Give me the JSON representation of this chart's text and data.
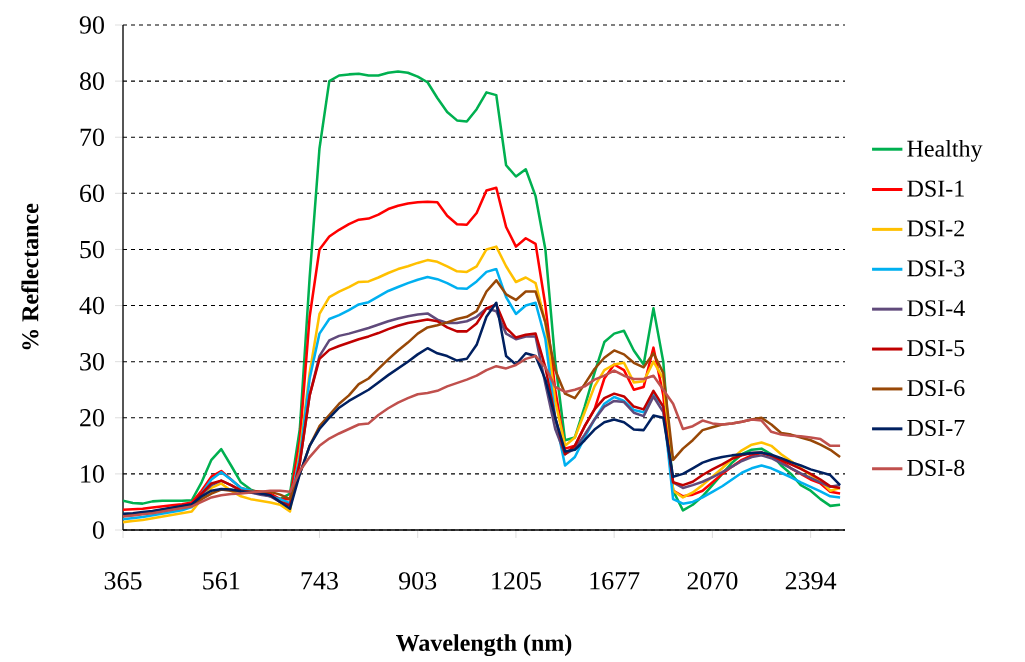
{
  "chart_data": {
    "type": "line",
    "xlabel": "Wavelength (nm)",
    "ylabel": "% Reflectance",
    "categories": [
      "365",
      null,
      null,
      null,
      null,
      null,
      null,
      null,
      null,
      null,
      "561",
      null,
      null,
      null,
      null,
      null,
      null,
      null,
      null,
      null,
      "743",
      null,
      null,
      null,
      null,
      null,
      null,
      null,
      null,
      null,
      "903",
      null,
      null,
      null,
      null,
      null,
      null,
      null,
      null,
      null,
      "1205",
      null,
      null,
      null,
      null,
      null,
      null,
      null,
      null,
      null,
      "1677",
      null,
      null,
      null,
      null,
      null,
      null,
      null,
      null,
      null,
      "2070",
      null,
      null,
      null,
      null,
      null,
      null,
      null,
      null,
      null,
      "2394",
      null,
      null,
      null
    ],
    "ylim": [
      0,
      90
    ],
    "yticks": [
      0,
      10,
      20,
      30,
      40,
      50,
      60,
      70,
      80,
      90
    ],
    "grid": "y",
    "legend": "right",
    "series": [
      {
        "name": "Healthy",
        "color": "#00b050",
        "values": [
          5.2,
          4.8,
          4.7,
          5.1,
          5.2,
          5.2,
          5.2,
          5.3,
          8.5,
          12.5,
          14.4,
          11.5,
          8.5,
          7.2,
          6.5,
          6,
          5.5,
          6.5,
          18,
          45,
          68,
          80,
          81,
          81.2,
          81.3,
          81,
          81,
          81.5,
          81.7,
          81.5,
          80.8,
          79.8,
          77,
          74.5,
          73,
          72.8,
          75,
          78,
          77.5,
          65,
          63,
          64.3,
          59.5,
          50,
          30,
          16,
          16.5,
          22,
          28,
          33.5,
          35,
          35.5,
          32,
          29.5,
          39.5,
          30,
          7,
          3.5,
          4.5,
          6,
          8,
          10,
          12,
          13.5,
          14.3,
          14.5,
          13.5,
          11.5,
          10,
          8,
          7,
          5.5,
          4.3,
          4.5
        ]
      },
      {
        "name": "DSI-1",
        "color": "#ff0000",
        "values": [
          3.6,
          3.7,
          3.8,
          4.0,
          4.2,
          4.4,
          4.6,
          4.9,
          7,
          9.5,
          10.5,
          9,
          7.5,
          7,
          6.8,
          6.5,
          5.5,
          5.5,
          16,
          38,
          50,
          52.3,
          53.5,
          54.5,
          55.3,
          55.5,
          56.2,
          57.2,
          57.8,
          58.2,
          58.4,
          58.5,
          58.4,
          56,
          54.5,
          54.4,
          56.5,
          60.5,
          61,
          54,
          50.5,
          52,
          51,
          40,
          25,
          14.5,
          15,
          18.5,
          21.5,
          27,
          29.5,
          28.5,
          25,
          25.5,
          32.5,
          24,
          7,
          6,
          6.3,
          7,
          8.5,
          10,
          11.3,
          12.5,
          13.3,
          13.7,
          13.2,
          12.3,
          11,
          10,
          9,
          8.3,
          6.8,
          6.5
        ]
      },
      {
        "name": "DSI-2",
        "color": "#ffc000",
        "values": [
          1.4,
          1.6,
          1.8,
          2.1,
          2.4,
          2.7,
          3,
          3.3,
          5.5,
          7.5,
          8.3,
          7,
          6,
          5.5,
          5.2,
          4.9,
          4.5,
          3.3,
          14,
          28,
          38.5,
          41.5,
          42.5,
          43.3,
          44.2,
          44.3,
          45,
          45.8,
          46.5,
          47,
          47.6,
          48.1,
          47.8,
          47,
          46.1,
          46,
          47,
          50,
          50.5,
          47,
          44.2,
          45,
          44,
          37,
          23,
          15,
          16.5,
          21,
          25.6,
          28.5,
          29.5,
          29.8,
          26.3,
          26.5,
          30,
          27,
          7,
          5.8,
          6.7,
          8,
          9.5,
          11,
          12.7,
          14.2,
          15.2,
          15.6,
          15,
          13.5,
          12.3,
          11,
          9.8,
          8.8,
          7,
          7.5
        ]
      },
      {
        "name": "DSI-3",
        "color": "#00b0f0",
        "values": [
          1.9,
          2.1,
          2.3,
          2.6,
          2.9,
          3.2,
          3.5,
          4.1,
          6.5,
          9,
          10.3,
          9,
          7.5,
          7,
          6.5,
          6,
          5.5,
          4.8,
          13,
          27,
          35,
          37.6,
          38.3,
          39.2,
          40.2,
          40.6,
          41.6,
          42.6,
          43.3,
          44,
          44.6,
          45.1,
          44.7,
          44,
          43.1,
          43,
          44.3,
          46,
          46.5,
          41.5,
          38.5,
          40,
          40.5,
          34,
          20,
          11.5,
          13,
          16.5,
          19.7,
          22.5,
          23.7,
          23,
          21.4,
          21,
          24.2,
          22,
          5.5,
          4.7,
          5,
          5.8,
          6.8,
          7.8,
          9,
          10.2,
          11,
          11.5,
          11,
          10.2,
          9.4,
          8.5,
          7.7,
          6.9,
          6,
          5.8
        ]
      },
      {
        "name": "DSI-4",
        "color": "#604a7b",
        "values": [
          2.5,
          2.7,
          2.9,
          3.2,
          3.5,
          3.8,
          4,
          4.3,
          6.3,
          8,
          8.8,
          8,
          7,
          6.7,
          6.3,
          6,
          5,
          4.5,
          12,
          24,
          31,
          33.8,
          34.6,
          35,
          35.5,
          36,
          36.6,
          37.2,
          37.7,
          38.1,
          38.4,
          38.6,
          37.5,
          36.9,
          36.9,
          37.2,
          38,
          39.5,
          39,
          35,
          34,
          34.5,
          34.5,
          26,
          18,
          13.5,
          14.5,
          17,
          19.7,
          22,
          23,
          22.8,
          20.9,
          20.3,
          23.8,
          21,
          8.5,
          7.5,
          8,
          8.6,
          9.4,
          10.3,
          11.3,
          12.3,
          13,
          13.3,
          12.8,
          11.9,
          11,
          10.1,
          9.3,
          8.5,
          7.7,
          8
        ]
      },
      {
        "name": "DSI-5",
        "color": "#c00000",
        "values": [
          2.6,
          2.8,
          3,
          3.3,
          3.6,
          3.9,
          4.1,
          4.4,
          6.5,
          8.3,
          8.8,
          8,
          7,
          6.8,
          6.6,
          6.2,
          5,
          4.3,
          12,
          24,
          30.5,
          32.1,
          32.8,
          33.4,
          34,
          34.5,
          35.1,
          35.8,
          36.4,
          36.9,
          37.2,
          37.5,
          37.2,
          36.1,
          35.4,
          35.4,
          36.8,
          39.5,
          40.2,
          36,
          34.3,
          34.8,
          35,
          29,
          20,
          13.5,
          15,
          18.5,
          21.5,
          23.5,
          24.3,
          23.8,
          22,
          21.5,
          24.8,
          22,
          8.5,
          8,
          8.6,
          9.8,
          10.8,
          11.7,
          12.7,
          13.3,
          13.7,
          13.8,
          13.3,
          12.5,
          11.7,
          10.9,
          10,
          9,
          7.8,
          7.5
        ]
      },
      {
        "name": "DSI-6",
        "color": "#984807",
        "values": [
          2.6,
          2.8,
          3,
          3.2,
          3.5,
          3.8,
          4.1,
          4.4,
          5.5,
          6.5,
          7.2,
          7,
          6.8,
          6.8,
          6.8,
          6.8,
          6.3,
          5.5,
          10,
          15,
          18.5,
          20.5,
          22.5,
          24,
          26,
          27,
          28.7,
          30.4,
          32,
          33.4,
          35,
          36.1,
          36.5,
          37,
          37.6,
          38,
          39,
          42.5,
          44.5,
          42,
          41,
          42.5,
          42.5,
          37,
          28.5,
          24.3,
          23.5,
          26,
          28.7,
          30.7,
          32,
          31.3,
          29.8,
          29,
          31.5,
          28,
          12.5,
          14.5,
          16,
          17.8,
          18.3,
          18.8,
          19,
          19.3,
          19.7,
          20,
          18.8,
          17.3,
          17,
          16.5,
          16,
          15.2,
          14.3,
          13
        ]
      },
      {
        "name": "DSI-7",
        "color": "#002060",
        "values": [
          2.9,
          3,
          3.2,
          3.4,
          3.7,
          4,
          4.3,
          4.6,
          6,
          7,
          7.3,
          7.2,
          6.9,
          6.7,
          6.5,
          6.2,
          5,
          3.8,
          10,
          15,
          18,
          20,
          21.8,
          23,
          24,
          25,
          26.3,
          27.6,
          28.8,
          30,
          31.3,
          32.4,
          31.5,
          31,
          30.2,
          30.5,
          33,
          38,
          40.5,
          31,
          29.5,
          31.5,
          31,
          26.8,
          20,
          14,
          14.3,
          16,
          17.9,
          19.2,
          19.7,
          19.2,
          17.9,
          17.8,
          20.4,
          20,
          9.5,
          10,
          11,
          12,
          12.6,
          13,
          13.3,
          13.5,
          13.7,
          13.8,
          13.4,
          12.8,
          12.1,
          11.5,
          10.8,
          10.3,
          9.8,
          8
        ]
      },
      {
        "name": "DSI-8",
        "color": "#c0504d",
        "values": [
          2.4,
          2.6,
          2.8,
          3.0,
          3.3,
          3.6,
          3.9,
          4.2,
          5,
          5.8,
          6.2,
          6.4,
          6.5,
          6.7,
          6.8,
          7,
          7,
          6.8,
          10.5,
          13,
          15,
          16.3,
          17.2,
          18,
          18.8,
          19,
          20.5,
          21.7,
          22.7,
          23.5,
          24.2,
          24.4,
          24.8,
          25.6,
          26.2,
          26.8,
          27.5,
          28.5,
          29.2,
          28.8,
          29.4,
          30.5,
          31,
          29,
          25.5,
          24.6,
          25,
          25.6,
          26.8,
          27.5,
          28.4,
          27.5,
          26.9,
          26.9,
          27.5,
          25,
          22.5,
          18,
          18.5,
          19.5,
          19,
          18.8,
          19,
          19.3,
          19.7,
          19.5,
          17.5,
          17,
          16.8,
          16.7,
          16.5,
          16.2,
          15,
          15
        ]
      }
    ]
  }
}
